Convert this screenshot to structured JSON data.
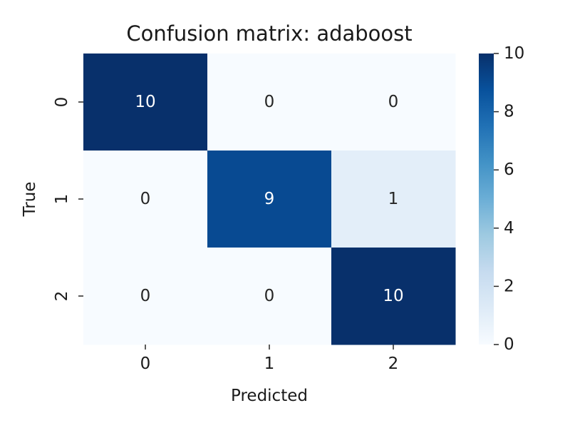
{
  "chart_data": {
    "type": "heatmap",
    "title": "Confusion matrix: adaboost",
    "xlabel": "Predicted",
    "ylabel": "True",
    "x_categories": [
      "0",
      "1",
      "2"
    ],
    "y_categories": [
      "0",
      "1",
      "2"
    ],
    "values": [
      [
        10,
        0,
        0
      ],
      [
        0,
        9,
        1
      ],
      [
        0,
        0,
        10
      ]
    ],
    "colormap": "Blues",
    "colorbar": {
      "range": [
        0,
        10
      ],
      "ticks": [
        0,
        2,
        4,
        6,
        8,
        10
      ]
    },
    "annotation_colors": {
      "dark": "#ffffff",
      "light": "#262626"
    }
  }
}
